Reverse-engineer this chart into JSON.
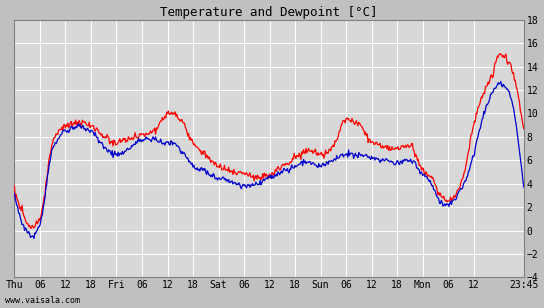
{
  "title": "Temperature and Dewpoint [°C]",
  "title_display": "Temperature and Dewpoint [°C]",
  "outer_bg": "#c0c0c0",
  "plot_bg": "#d8d8d8",
  "grid_color": "#ffffff",
  "temp_color": "#ff0000",
  "dew_color": "#0000cc",
  "ylim": [
    -4,
    18
  ],
  "yticks": [
    -4,
    -2,
    0,
    2,
    4,
    6,
    8,
    10,
    12,
    14,
    16,
    18
  ],
  "watermark": "www.vaisala.com",
  "xtick_labels": [
    "Thu",
    "06",
    "12",
    "18",
    "Fri",
    "06",
    "12",
    "18",
    "Sat",
    "06",
    "12",
    "18",
    "Sun",
    "06",
    "12",
    "18",
    "Mon",
    "06",
    "12",
    "23:45"
  ],
  "xtick_positions": [
    0,
    6,
    12,
    18,
    24,
    30,
    36,
    42,
    48,
    54,
    60,
    66,
    72,
    78,
    84,
    90,
    96,
    102,
    108,
    119.75
  ],
  "temp_ctrl_t": [
    0,
    2,
    4,
    6,
    9,
    12,
    15,
    18,
    21,
    24,
    27,
    30,
    33,
    35,
    37,
    39,
    42,
    45,
    48,
    51,
    54,
    57,
    60,
    63,
    66,
    69,
    72,
    75,
    78,
    81,
    84,
    87,
    90,
    93,
    96,
    98,
    100,
    102,
    105,
    108,
    110,
    112,
    114,
    116,
    119.75
  ],
  "temp_ctrl_v": [
    3.5,
    1.5,
    0.2,
    1.0,
    7.5,
    9.0,
    9.2,
    9.0,
    8.0,
    7.5,
    7.8,
    8.2,
    8.5,
    9.5,
    10.0,
    9.5,
    7.5,
    6.5,
    5.5,
    5.0,
    4.8,
    4.5,
    4.8,
    5.5,
    6.2,
    6.8,
    6.5,
    7.2,
    9.5,
    9.0,
    7.5,
    7.2,
    7.0,
    7.2,
    5.2,
    4.5,
    3.0,
    2.5,
    4.0,
    9.0,
    11.5,
    13.0,
    15.0,
    14.5,
    8.5
  ],
  "dew_ctrl_t": [
    0,
    2,
    4,
    6,
    9,
    12,
    15,
    18,
    21,
    24,
    27,
    30,
    33,
    35,
    37,
    39,
    42,
    45,
    48,
    51,
    54,
    57,
    60,
    63,
    66,
    69,
    72,
    75,
    78,
    81,
    84,
    87,
    90,
    93,
    96,
    98,
    100,
    102,
    105,
    108,
    110,
    112,
    114,
    116,
    119.75
  ],
  "dew_ctrl_v": [
    3.2,
    0.5,
    -0.5,
    0.5,
    7.0,
    8.5,
    8.8,
    8.5,
    7.2,
    6.5,
    7.0,
    7.8,
    7.8,
    7.5,
    7.5,
    7.0,
    5.5,
    5.0,
    4.5,
    4.2,
    3.8,
    4.0,
    4.5,
    5.0,
    5.5,
    5.8,
    5.5,
    6.0,
    6.5,
    6.5,
    6.2,
    6.0,
    5.8,
    6.0,
    4.8,
    4.0,
    2.5,
    2.2,
    3.5,
    6.5,
    9.5,
    11.5,
    12.5,
    12.0,
    3.5
  ]
}
